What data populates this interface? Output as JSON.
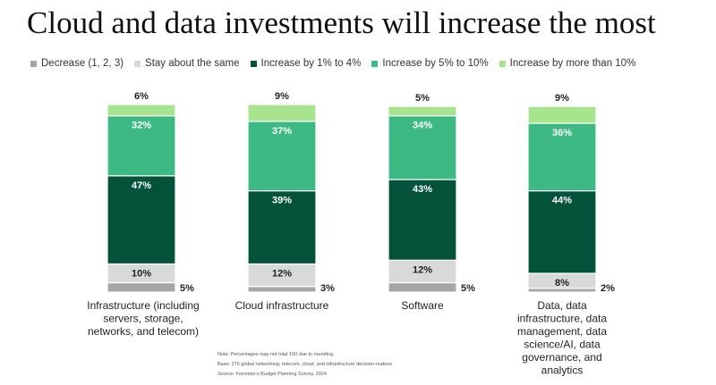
{
  "page": {
    "title": "Cloud and data investments will increase the most",
    "notes": [
      "Note: Percentages may not total 100 due to rounding.",
      "Base: 276 global networking, telecom, cloud, and infrastructure decision-makers",
      "Source: Forrester's Budget Planning Survey, 2024"
    ]
  },
  "chart_data": {
    "type": "bar",
    "stacked": true,
    "title": "Cloud and data investments will increase the most",
    "legend_position": "top",
    "grid": false,
    "ylim": [
      0,
      100
    ],
    "categories": [
      "Infrastructure (including servers, storage, networks, and telecom)",
      "Cloud infrastructure",
      "Software",
      "Data, data infrastructure, data management, data science/AI, data governance, and analytics"
    ],
    "category_lines": [
      [
        "Infrastructure (including",
        "servers, storage,",
        "networks, and telecom)"
      ],
      [
        "Cloud infrastructure"
      ],
      [
        "Software"
      ],
      [
        "Data, data",
        "infrastructure, data",
        "management, data",
        "science/AI, data",
        "governance, and",
        "analytics"
      ]
    ],
    "series": [
      {
        "name": "Decrease (1, 2, 3)",
        "color": "#a6a6a6",
        "values": [
          5,
          3,
          5,
          2
        ]
      },
      {
        "name": "Stay about the same",
        "color": "#d9d9d9",
        "values": [
          10,
          12,
          12,
          8
        ]
      },
      {
        "name": "Increase by 1% to 4%",
        "color": "#05523a",
        "values": [
          47,
          39,
          43,
          44
        ]
      },
      {
        "name": "Increase by 5% to 10%",
        "color": "#3dba84",
        "values": [
          32,
          37,
          34,
          36
        ]
      },
      {
        "name": "Increase by more than 10%",
        "color": "#a8e48e",
        "values": [
          6,
          9,
          5,
          9
        ]
      }
    ]
  }
}
